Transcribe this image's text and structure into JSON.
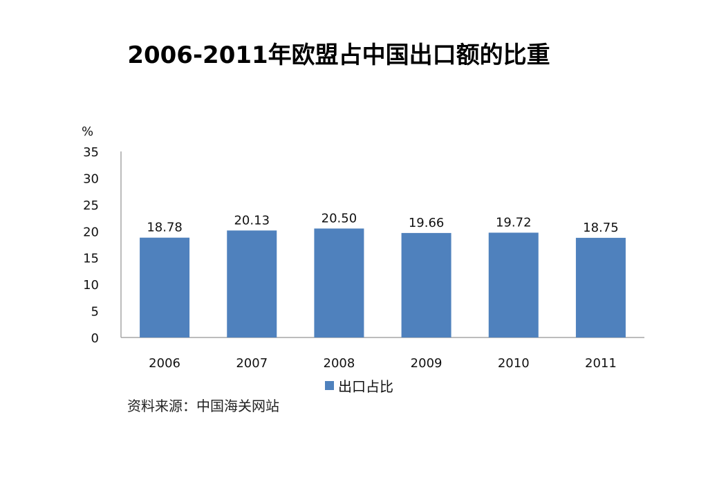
{
  "title": "2006-2011年欧盟占中国出口额的比重",
  "source": "资料来源：中国海关网站",
  "colors": {
    "bar": "#4F81BD",
    "axis": "#A6A6A6"
  },
  "chart_data": {
    "type": "bar",
    "title": "2006-2011年欧盟占中国出口额的比重",
    "ylabel": "%",
    "xlabel": "",
    "categories": [
      "2006",
      "2007",
      "2008",
      "2009",
      "2010",
      "2011"
    ],
    "series": [
      {
        "name": "出口占比",
        "values": [
          18.78,
          20.13,
          20.5,
          19.66,
          19.72,
          18.75
        ],
        "labels": [
          "18.78",
          "20.13",
          "20.50",
          "19.66",
          "19.72",
          "18.75"
        ]
      }
    ],
    "ylim": [
      0,
      35
    ],
    "yticks": [
      0,
      5,
      10,
      15,
      20,
      25,
      30,
      35
    ],
    "grid": false,
    "legend": "bottom"
  }
}
